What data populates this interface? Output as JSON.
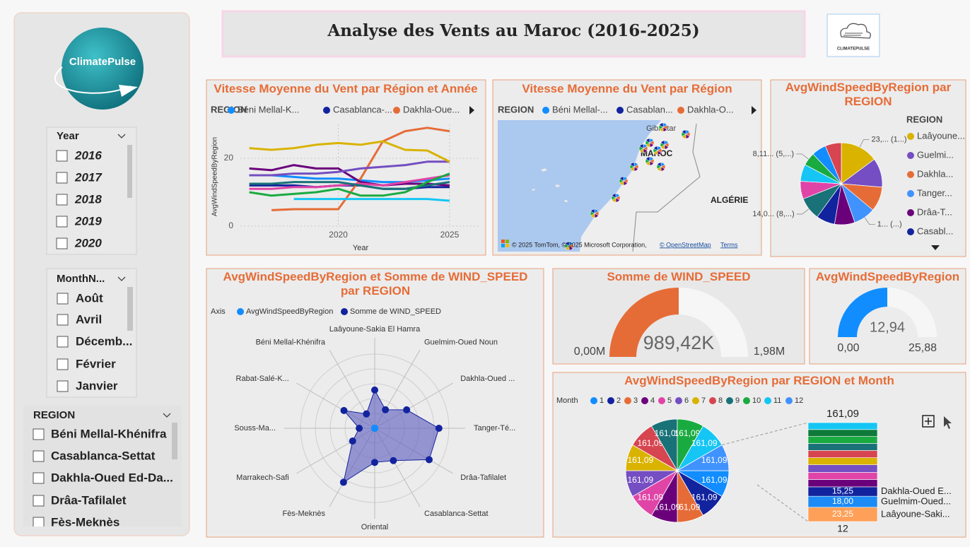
{
  "header": {
    "title": "Analyse des Vents au Maroc (2016-2025)",
    "logo_text": "ClimatePulse",
    "badge_text": "CLIMATEPULSE"
  },
  "slicers": [
    {
      "title": "Year",
      "items": [
        "2016",
        "2017",
        "2018",
        "2019",
        "2020"
      ]
    },
    {
      "title": "MonthN...",
      "items": [
        "Août",
        "Avril",
        "Décemb...",
        "Février",
        "Janvier"
      ]
    },
    {
      "title": "REGION",
      "items": [
        "Béni Mellal-Khénifra",
        "Casablanca-Settat",
        "Dakhla-Oued Ed-Da...",
        "Drâa-Tafilalet",
        "Fès-Meknès"
      ]
    }
  ],
  "chart_data": [
    {
      "type": "line",
      "title": "Vitesse Moyenne du Vent par Région et Année",
      "legend_title": "REGION",
      "x_label": "Year",
      "y_label": "AvgWindSpeedByRegion",
      "x": [
        2016,
        2017,
        2018,
        2019,
        2020,
        2021,
        2022,
        2023,
        2024,
        2025
      ],
      "xlim": [
        2015.6,
        2026.4
      ],
      "xticks": [
        2020,
        2025
      ],
      "ylim": [
        0,
        30
      ],
      "yticks": [
        0,
        20
      ],
      "grid": true,
      "series": [
        {
          "name": "Béni Mellal-K...",
          "color": "#118DFF",
          "values": [
            15,
            15,
            14.5,
            14,
            14,
            13.5,
            13,
            13,
            13.5,
            14
          ]
        },
        {
          "name": "Casablanca-...",
          "color": "#12239E",
          "values": [
            12,
            12,
            12,
            11.5,
            12,
            12,
            11,
            11,
            11.5,
            11.5
          ]
        },
        {
          "name": "Dakhla-Oue...",
          "color": "#E66C37",
          "values": [
            null,
            4.7,
            5,
            5,
            5,
            14,
            25,
            28,
            29,
            28
          ]
        },
        {
          "color": "#6B007B",
          "values": [
            17,
            16.5,
            18,
            17,
            17,
            13,
            12,
            12.5,
            12.5,
            12
          ]
        },
        {
          "color": "#E044A7",
          "values": [
            11,
            11,
            11.5,
            11.5,
            12,
            12.5,
            12,
            13,
            14,
            15
          ]
        },
        {
          "color": "#744EC2",
          "values": [
            15,
            15,
            15.5,
            15.5,
            16,
            17,
            17.5,
            18,
            19,
            19
          ]
        },
        {
          "color": "#D9B300",
          "values": [
            23,
            22.5,
            23,
            24,
            24.5,
            24,
            25,
            22.5,
            22.3,
            19
          ]
        },
        {
          "color": "#197278",
          "values": [
            12.5,
            12.5,
            13,
            13,
            13,
            12,
            11,
            11,
            12,
            13
          ]
        },
        {
          "color": "#1AAB40",
          "values": [
            10,
            9,
            9.5,
            10,
            11,
            9,
            9,
            10,
            13,
            15.5
          ]
        },
        {
          "color": "#15C6F4",
          "values": [
            null,
            null,
            8,
            8,
            8,
            8,
            8,
            8,
            8,
            7.5
          ]
        }
      ]
    },
    {
      "type": "map",
      "title": "Vitesse Moyenne du Vent par Région",
      "legend_title": "REGION",
      "legend": [
        {
          "name": "Béni Mellal-...",
          "color": "#118DFF"
        },
        {
          "name": "Casablan...",
          "color": "#12239E"
        },
        {
          "name": "Dakhla-O...",
          "color": "#E66C37"
        }
      ],
      "labels": [
        "Gibraltar",
        "MAROC",
        "ALGÉRIE"
      ],
      "attribution": "© 2025 TomTom, © 2025 Microsoft Corporation,",
      "attribution_link": "© OpenStreetMap",
      "terms": "Terms"
    },
    {
      "type": "pie",
      "title": "AvgWindSpeedByRegion par REGION",
      "legend_title": "REGION",
      "categories": [
        "Laâyoune...",
        "Guelmi...",
        "Dakhla...",
        "Tanger...",
        "Drâa-T...",
        "Casabl...",
        null,
        null,
        null,
        null,
        null,
        null
      ],
      "values": [
        23.25,
        18,
        15.25,
        13.5,
        12.5,
        11.5,
        14.04,
        11,
        10.5,
        8.11,
        9,
        10
      ],
      "value_labels": [
        "23,... (1...)",
        null,
        null,
        "1... (...)",
        null,
        null,
        "14,0... (8,...)",
        null,
        null,
        "8,11... (5,...)",
        null,
        null
      ],
      "colors": [
        "#D9B300",
        "#744EC2",
        "#E66C37",
        "#4092FF",
        "#6B007B",
        "#12239E",
        "#197278",
        "#E044A7",
        "#15C6F4",
        "#1AAB40",
        "#118DFF",
        "#D64550"
      ]
    },
    {
      "type": "radar",
      "title": "AvgWindSpeedByRegion et Somme de WIND_SPEED par REGION",
      "legend_title": "Axis",
      "categories": [
        "Laâyoune-Sakia El Hamra",
        "Guelmim-Oued Noun",
        "Dakhla-Oued ...",
        "Tanger-Té...",
        "Drâa-Tafilalet",
        "Casablanca-Settat",
        "Oriental",
        "Fès-Meknès",
        "Marrakech-Safi",
        "Souss-Ma...",
        "Rabat-Salé-K...",
        "Béni Mellal-Khénifra"
      ],
      "ylim": [
        0,
        163000
      ],
      "series": [
        {
          "name": "AvgWindSpeedByRegion",
          "color": "#118DFF",
          "values": [
            23.25,
            18,
            15.25,
            13.5,
            12.5,
            11.5,
            14.04,
            11,
            10.5,
            8.11,
            9,
            10
          ]
        },
        {
          "name": "Somme de WIND_SPEED",
          "color": "#12239E",
          "values": [
            84000,
            47000,
            81000,
            141000,
            138000,
            82000,
            75000,
            137000,
            56000,
            34000,
            78000,
            36420
          ]
        }
      ]
    },
    {
      "type": "gauge",
      "title": "Somme de WIND_SPEED",
      "value": 989420,
      "value_label": "989,42K",
      "color": "#E66C37",
      "ylim": [
        0,
        1978840
      ],
      "yticks": [
        {
          "value": 0,
          "label": "0,00M"
        },
        {
          "value": 1978840,
          "label": "1,98M"
        }
      ]
    },
    {
      "type": "gauge",
      "title": "AvgWindSpeedByRegion",
      "value": 12.94,
      "value_label": "12,94",
      "color": "#118DFF",
      "ylim": [
        0,
        25.88
      ],
      "yticks": [
        {
          "value": 0,
          "label": "0,00"
        },
        {
          "value": 25.88,
          "label": "25,88"
        }
      ]
    },
    {
      "type": "pie",
      "title": "AvgWindSpeedByRegion par REGION et Month",
      "legend_title": "Month",
      "categories": [
        "1",
        "2",
        "3",
        "4",
        "5",
        "6",
        "7",
        "8",
        "9",
        "10",
        "11",
        "12"
      ],
      "values": [
        161.09,
        161.09,
        161.09,
        161.09,
        161.09,
        161.09,
        161.09,
        161.09,
        161.09,
        161.09,
        161.09,
        161.09
      ],
      "value_labels": [
        "161,09",
        "161,09",
        "161,09",
        "161,09",
        "161,09",
        "161,09",
        "161,09",
        "161,09",
        "161,09",
        "161,09",
        "161,09",
        "161,09"
      ],
      "colors": [
        "#118DFF",
        "#12239E",
        "#E66C37",
        "#6B007B",
        "#E044A7",
        "#744EC2",
        "#D9B300",
        "#D64550",
        "#197278",
        "#1AAB40",
        "#15C6F4",
        "#4092FF"
      ]
    },
    {
      "type": "bar",
      "stacked": true,
      "categories": [
        "12"
      ],
      "series": [
        {
          "name": "Laâyoune-Saki...",
          "color": "#FFA058",
          "values": [
            23.25
          ],
          "value_labels": [
            "23,25"
          ]
        },
        {
          "name": "Guelmim-Oued...",
          "color": "#1C8BF5",
          "values": [
            18.0
          ],
          "value_labels": [
            "18,00"
          ]
        },
        {
          "name": "Dakhla-Oued E...",
          "color": "#12239E",
          "values": [
            15.25
          ],
          "value_labels": [
            "15,25"
          ]
        },
        {
          "color": "#6B007B",
          "values": [
            12
          ]
        },
        {
          "color": "#E044A7",
          "values": [
            11.5
          ]
        },
        {
          "color": "#744EC2",
          "values": [
            12.4
          ]
        },
        {
          "color": "#D9B300",
          "values": [
            11.6
          ]
        },
        {
          "color": "#D64550",
          "values": [
            11.8
          ]
        },
        {
          "color": "#197278",
          "values": [
            11.5
          ]
        },
        {
          "color": "#1AAB40",
          "values": [
            11.2
          ]
        },
        {
          "color": "#0E7A3A",
          "values": [
            11.3
          ]
        },
        {
          "color": "#15C6F4",
          "values": [
            11.29
          ]
        }
      ]
    }
  ]
}
